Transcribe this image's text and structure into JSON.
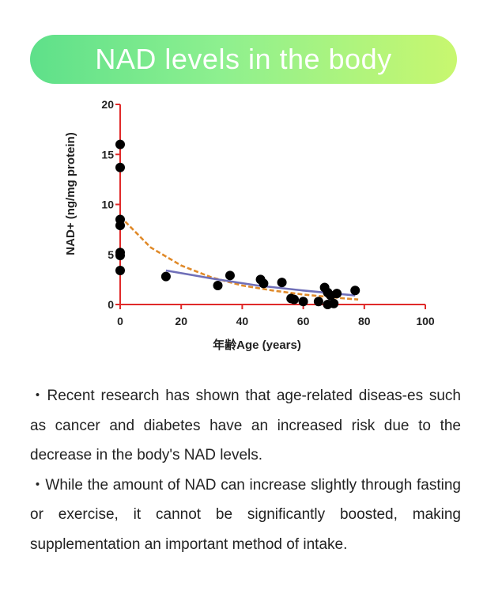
{
  "banner": {
    "title": "NAD levels in the body"
  },
  "chart_data": {
    "type": "scatter",
    "title": "",
    "xlabel": "年齢Age (years)",
    "ylabel": "NAD+ (ng/mg protein)",
    "xlim": [
      0,
      100
    ],
    "ylim": [
      0,
      20
    ],
    "x_ticks": [
      "0",
      "20",
      "40",
      "60",
      "80",
      "100"
    ],
    "y_ticks": [
      "0",
      "5",
      "10",
      "15",
      "20"
    ],
    "series": [
      {
        "color": "#000000",
        "points": [
          [
            0,
            16.0
          ],
          [
            0,
            13.7
          ],
          [
            0,
            8.5
          ],
          [
            0,
            7.9
          ],
          [
            0,
            5.2
          ],
          [
            0,
            4.9
          ],
          [
            0,
            3.4
          ],
          [
            15,
            2.8
          ],
          [
            32,
            1.9
          ],
          [
            36,
            2.9
          ],
          [
            46,
            2.5
          ],
          [
            47,
            2.1
          ],
          [
            53,
            2.2
          ],
          [
            56,
            0.6
          ],
          [
            57,
            0.5
          ],
          [
            60,
            0.3
          ],
          [
            65,
            0.3
          ],
          [
            67,
            1.7
          ],
          [
            68,
            1.2
          ],
          [
            68,
            0.0
          ],
          [
            69,
            0.9
          ],
          [
            70,
            0.1
          ],
          [
            71,
            1.1
          ],
          [
            77,
            1.4
          ]
        ]
      },
      {
        "type": "line",
        "style": "dashed",
        "color": "#e08a2a",
        "points": [
          [
            0,
            8.8
          ],
          [
            10,
            5.7
          ],
          [
            20,
            3.9
          ],
          [
            30,
            2.7
          ],
          [
            40,
            1.9
          ],
          [
            50,
            1.4
          ],
          [
            60,
            1.0
          ],
          [
            70,
            0.7
          ],
          [
            78,
            0.5
          ]
        ]
      },
      {
        "type": "line",
        "style": "solid",
        "color": "#6f6fb8",
        "points": [
          [
            15,
            3.4
          ],
          [
            30,
            2.6
          ],
          [
            45,
            1.9
          ],
          [
            60,
            1.4
          ],
          [
            77,
            0.9
          ]
        ]
      }
    ],
    "axis_color": "#e02a2a",
    "grid": false
  },
  "text": {
    "paragraphs": [
      "・Recent research has shown that age-related diseas-es such as cancer and diabetes have an increased risk due to the decrease in the body's NAD levels.",
      "・While the amount of NAD can increase slightly through fasting or exercise, it cannot be significantly boosted, making supplementation an important method of intake."
    ]
  }
}
